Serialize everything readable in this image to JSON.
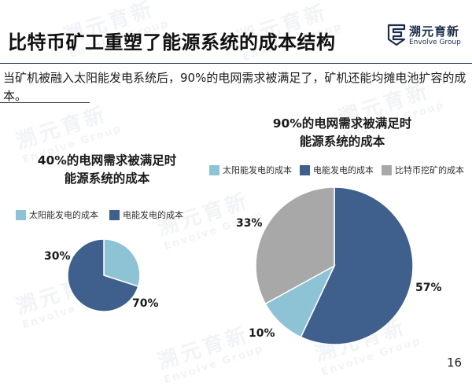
{
  "header": {
    "title": "比特币矿工重塑了能源系统的成本结构",
    "logo_cn": "溯元育新",
    "logo_en": "Envolve Group"
  },
  "subtitle": "当矿机被融入太阳能发电系统后，90%的电网需求被满足了，矿机还能均摊电池扩容的成本。",
  "colors": {
    "solar": "#8ec3d6",
    "grid": "#3f5f8c",
    "mining": "#a8a8a8",
    "brand": "#1d2d4a"
  },
  "chart_data": [
    {
      "type": "pie",
      "title_lines": [
        "40%的电网需求被满足时",
        "能源系统的成本"
      ],
      "legend": [
        "太阳能发电的成本",
        "电能发电的成本"
      ],
      "slices": [
        {
          "name": "太阳能发电的成本",
          "value": 30,
          "label": "30%",
          "color": "#8ec3d6"
        },
        {
          "name": "电能发电的成本",
          "value": 70,
          "label": "70%",
          "color": "#3f5f8c"
        }
      ]
    },
    {
      "type": "pie",
      "title_lines": [
        "90%的电网需求被满足时",
        "能源系统的成本"
      ],
      "legend": [
        "太阳能发电的成本",
        "电能发电的成本",
        "比特币挖矿的成本"
      ],
      "slices": [
        {
          "name": "电能发电的成本",
          "value": 57,
          "label": "57%",
          "color": "#3f5f8c"
        },
        {
          "name": "太阳能发电的成本",
          "value": 10,
          "label": "10%",
          "color": "#8ec3d6"
        },
        {
          "name": "比特币挖矿的成本",
          "value": 33,
          "label": "33%",
          "color": "#a8a8a8"
        }
      ]
    }
  ],
  "page_number": "16"
}
